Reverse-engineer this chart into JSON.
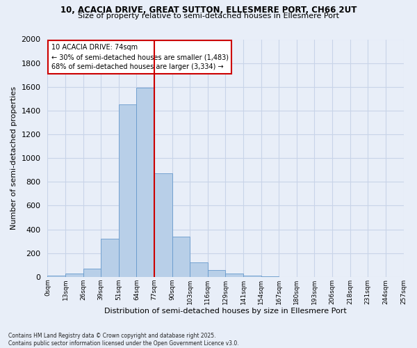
{
  "title1": "10, ACACIA DRIVE, GREAT SUTTON, ELLESMERE PORT, CH66 2UT",
  "title2": "Size of property relative to semi-detached houses in Ellesmere Port",
  "xlabel": "Distribution of semi-detached houses by size in Ellesmere Port",
  "ylabel": "Number of semi-detached properties",
  "footnote": "Contains HM Land Registry data © Crown copyright and database right 2025.\nContains public sector information licensed under the Open Government Licence v3.0.",
  "bar_labels": [
    "0sqm",
    "13sqm",
    "26sqm",
    "39sqm",
    "51sqm",
    "64sqm",
    "77sqm",
    "90sqm",
    "103sqm",
    "116sqm",
    "129sqm",
    "141sqm",
    "154sqm",
    "167sqm",
    "180sqm",
    "193sqm",
    "206sqm",
    "218sqm",
    "231sqm",
    "244sqm",
    "257sqm"
  ],
  "bar_heights": [
    10,
    30,
    70,
    320,
    1450,
    1590,
    870,
    340,
    120,
    55,
    30,
    10,
    5,
    0,
    0,
    0,
    0,
    0,
    0,
    0,
    0
  ],
  "bar_color": "#b8cfe8",
  "bar_edge_color": "#6699cc",
  "property_label": "10 ACACIA DRIVE: 74sqm",
  "annotation_line1": "← 30% of semi-detached houses are smaller (1,483)",
  "annotation_line2": "68% of semi-detached houses are larger (3,334) →",
  "vline_color": "#cc0000",
  "box_edge_color": "#cc0000",
  "ylim": [
    0,
    2000
  ],
  "yticks": [
    0,
    200,
    400,
    600,
    800,
    1000,
    1200,
    1400,
    1600,
    1800,
    2000
  ],
  "grid_color": "#c8d4e8",
  "background_color": "#e8eef8"
}
